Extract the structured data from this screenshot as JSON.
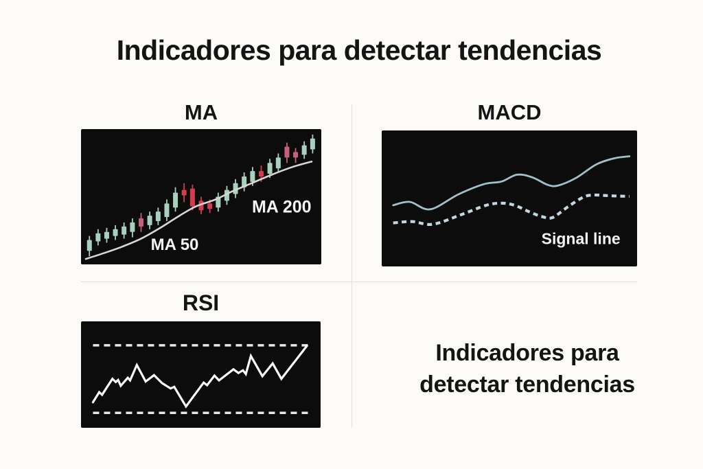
{
  "title": "Indicadores para detectar tendencias",
  "caption": {
    "line1": "Indicadores para",
    "line2": "detectar tendencias"
  },
  "panels": {
    "ma": {
      "heading": "MA",
      "ma50_label": "MA 50",
      "ma200_label": "MA 200"
    },
    "macd": {
      "heading": "MACD",
      "signal_label": "Signal line"
    },
    "rsi": {
      "heading": "RSI"
    }
  },
  "colors": {
    "background": "#fcfbf8",
    "text": "#141414",
    "divider": "#e0ded9",
    "panel_background": "#0c0c0c",
    "panel_label_text": "#f4f3f0",
    "candle_up": "#a9cfbe",
    "candle_down": "#d43c50",
    "candle_down_soft": "#c7607a",
    "ma_line": "#d8d7d3",
    "macd_line": "#a2bfcd",
    "signal_line": "#c3d7e0",
    "rsi_line": "#fbfbfa",
    "rsi_band": "#e9e8e4"
  },
  "chart_data": [
    {
      "id": "ma",
      "type": "candlestick",
      "title": "MA",
      "units": "percent-of-panel, y measured from top",
      "annotations": [
        "MA 50",
        "MA 200"
      ],
      "candles": [
        [
          3.5,
          82,
          90,
          79,
          94,
          "g"
        ],
        [
          7.1,
          77,
          83,
          74,
          86,
          "g"
        ],
        [
          10.7,
          76,
          81,
          73,
          84,
          "g"
        ],
        [
          14.3,
          74,
          79,
          71,
          82,
          "g"
        ],
        [
          17.9,
          72,
          78,
          69,
          81,
          "g"
        ],
        [
          21.4,
          69,
          76,
          66,
          80,
          "g"
        ],
        [
          25.0,
          66,
          72,
          62,
          76,
          "p"
        ],
        [
          28.6,
          64,
          71,
          61,
          74,
          "g"
        ],
        [
          32.1,
          61,
          68,
          58,
          71,
          "g"
        ],
        [
          35.7,
          55,
          65,
          52,
          68,
          "g"
        ],
        [
          39.3,
          47,
          58,
          43,
          61,
          "g"
        ],
        [
          42.9,
          45,
          49,
          40,
          54,
          "r"
        ],
        [
          46.4,
          44,
          57,
          41,
          60,
          "r"
        ],
        [
          50.0,
          53,
          60,
          50,
          63,
          "r"
        ],
        [
          53.6,
          55,
          59,
          52,
          62,
          "r"
        ],
        [
          57.1,
          50,
          58,
          47,
          61,
          "g"
        ],
        [
          60.7,
          45,
          53,
          42,
          56,
          "g"
        ],
        [
          64.3,
          40,
          48,
          37,
          51,
          "g"
        ],
        [
          67.9,
          35,
          43,
          32,
          46,
          "g"
        ],
        [
          71.4,
          31,
          39,
          28,
          42,
          "g"
        ],
        [
          75.0,
          31,
          35,
          27,
          39,
          "r"
        ],
        [
          78.6,
          25,
          33,
          22,
          36,
          "g"
        ],
        [
          82.1,
          21,
          29,
          18,
          32,
          "g"
        ],
        [
          85.7,
          13,
          21,
          10,
          25,
          "p"
        ],
        [
          89.3,
          17,
          21,
          14,
          25,
          "p"
        ],
        [
          92.9,
          12,
          19,
          9,
          22,
          "g"
        ],
        [
          96.4,
          7,
          15,
          4,
          18,
          "g"
        ]
      ],
      "ma_line": [
        [
          2,
          96
        ],
        [
          9,
          92
        ],
        [
          17,
          87
        ],
        [
          25,
          81
        ],
        [
          33,
          73
        ],
        [
          41,
          64
        ],
        [
          48,
          57
        ],
        [
          56,
          52
        ],
        [
          63,
          46
        ],
        [
          71,
          40
        ],
        [
          79,
          34
        ],
        [
          88,
          28
        ],
        [
          96,
          24
        ]
      ]
    },
    {
      "id": "macd",
      "type": "line",
      "title": "MACD",
      "units": "percent-of-panel, y measured from top",
      "series": [
        {
          "name": "MACD line",
          "style": "solid",
          "points": [
            [
              4.5,
              55
            ],
            [
              11,
              52.5
            ],
            [
              19,
              58
            ],
            [
              30,
              47
            ],
            [
              40,
              39.5
            ],
            [
              47,
              37.5
            ],
            [
              53,
              32.5
            ],
            [
              59,
              34.5
            ],
            [
              65,
              40
            ],
            [
              69,
              40.5
            ],
            [
              76,
              35
            ],
            [
              84,
              25
            ],
            [
              91,
              20.5
            ],
            [
              97,
              19
            ]
          ]
        },
        {
          "name": "Signal line",
          "style": "dashed",
          "points": [
            [
              4.5,
              68
            ],
            [
              12,
              67
            ],
            [
              20,
              69
            ],
            [
              31,
              62
            ],
            [
              41,
              55
            ],
            [
              47,
              53.5
            ],
            [
              52,
              55
            ],
            [
              58,
              60
            ],
            [
              63,
              63.5
            ],
            [
              67,
              64
            ],
            [
              73,
              56
            ],
            [
              79,
              49
            ],
            [
              83,
              47.5
            ],
            [
              89,
              48
            ],
            [
              97,
              48.5
            ]
          ]
        }
      ]
    },
    {
      "id": "rsi",
      "type": "line",
      "title": "RSI",
      "units": "percent-of-panel, y measured from top",
      "upper_band_y": 22.5,
      "lower_band_y": 86,
      "band_x_range": [
        5,
        95
      ],
      "points": [
        [
          5,
          76
        ],
        [
          7.6,
          66.5
        ],
        [
          8.8,
          69
        ],
        [
          13.1,
          54
        ],
        [
          14.5,
          57
        ],
        [
          15.5,
          55
        ],
        [
          16.6,
          60.5
        ],
        [
          19.5,
          53
        ],
        [
          20.5,
          55.5
        ],
        [
          23.3,
          41
        ],
        [
          27,
          56.5
        ],
        [
          30.5,
          50.5
        ],
        [
          33.8,
          58
        ],
        [
          37.4,
          63
        ],
        [
          38.9,
          61.5
        ],
        [
          43.8,
          80
        ],
        [
          51.2,
          57.5
        ],
        [
          52.6,
          60
        ],
        [
          55.7,
          51
        ],
        [
          57.6,
          55.5
        ],
        [
          63.6,
          45
        ],
        [
          65.7,
          48.5
        ],
        [
          67.6,
          46
        ],
        [
          68.8,
          49.5
        ],
        [
          70.9,
          32.5
        ],
        [
          75.7,
          51.5
        ],
        [
          80,
          39.5
        ],
        [
          83.6,
          54
        ],
        [
          94.3,
          23
        ]
      ]
    }
  ]
}
